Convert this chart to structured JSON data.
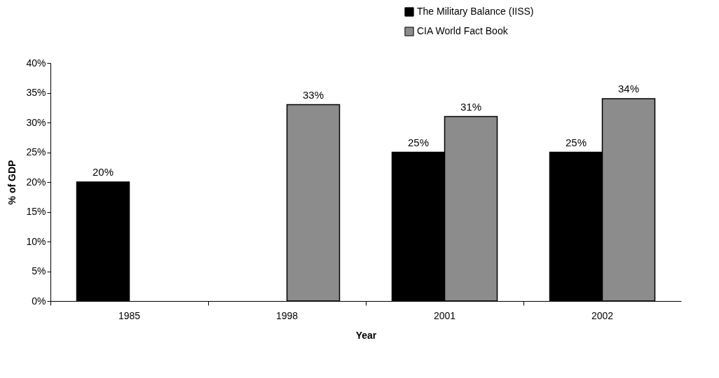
{
  "chart_data": {
    "type": "bar",
    "xlabel": "Year",
    "ylabel": "% of GDP",
    "categories": [
      "1985",
      "1998",
      "2001",
      "2002"
    ],
    "series": [
      {
        "name": "The Military Balance (IISS)",
        "color": "#000000",
        "values": [
          20,
          null,
          25,
          25
        ],
        "value_labels": [
          "20%",
          null,
          "25%",
          "25%"
        ]
      },
      {
        "name": "CIA World Fact Book",
        "color": "#8c8c8c",
        "values": [
          null,
          33,
          31,
          34
        ],
        "value_labels": [
          null,
          "33%",
          "31%",
          "34%"
        ]
      }
    ],
    "ylim": [
      0,
      40
    ],
    "yticks": [
      {
        "value": 0,
        "label": "0%"
      },
      {
        "value": 5,
        "label": "5%"
      },
      {
        "value": 10,
        "label": "10%"
      },
      {
        "value": 15,
        "label": "15%"
      },
      {
        "value": 20,
        "label": "20%"
      },
      {
        "value": 25,
        "label": "25%"
      },
      {
        "value": 30,
        "label": "30%"
      },
      {
        "value": 35,
        "label": "35%"
      },
      {
        "value": 40,
        "label": "40%"
      }
    ],
    "grid": false,
    "legend": "top right"
  }
}
